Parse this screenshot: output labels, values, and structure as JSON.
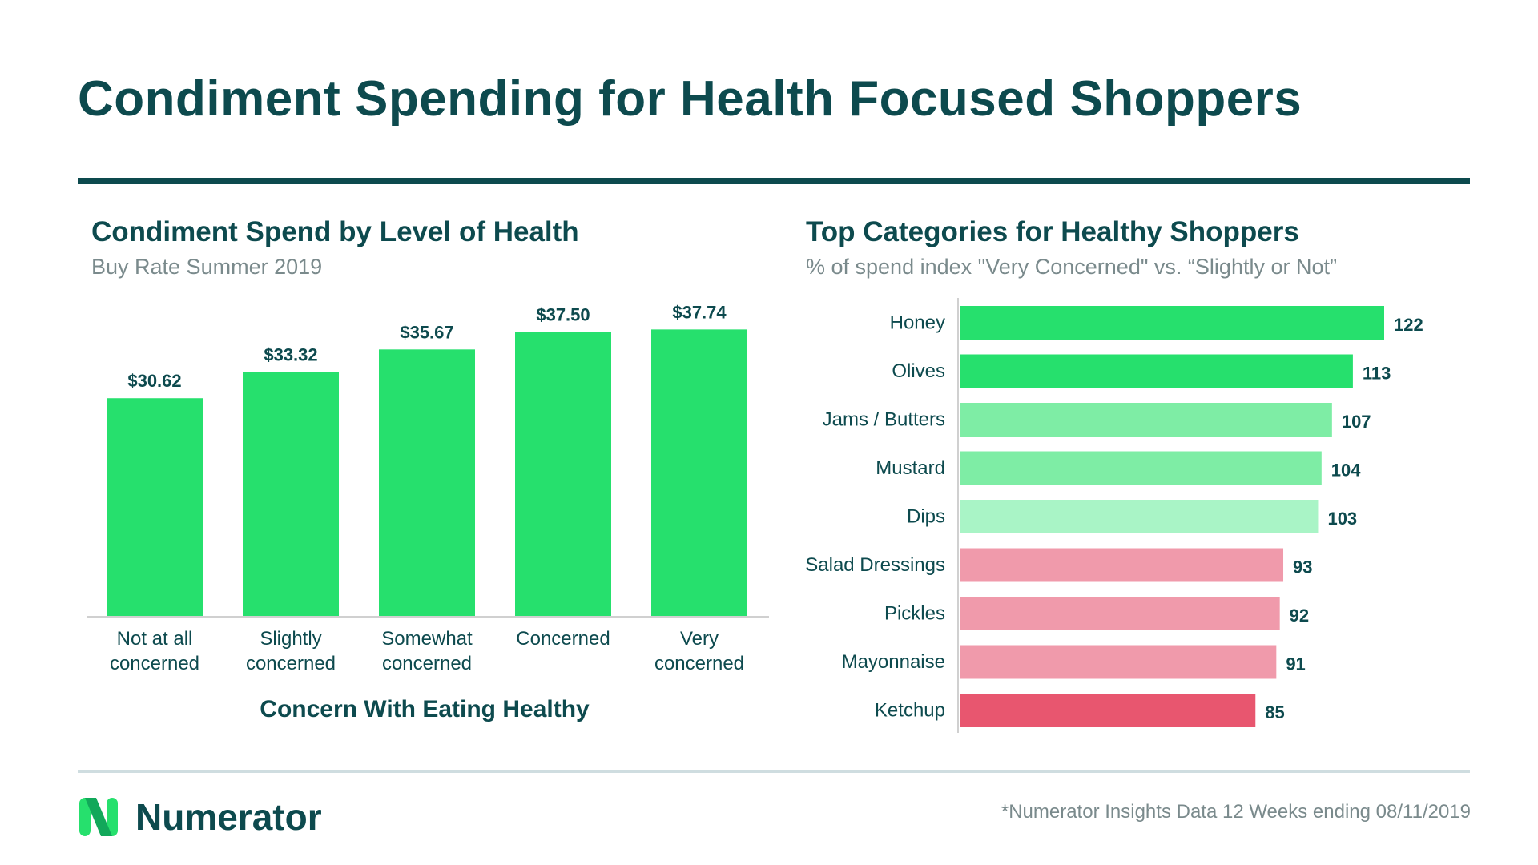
{
  "title": "Condiment Spending for Health Focused Shoppers",
  "left_panel": {
    "title": "Condiment Spend by Level of Health",
    "subtitle": "Buy Rate Summer 2019"
  },
  "right_panel": {
    "title": "Top Categories for Healthy Shoppers",
    "subtitle": "% of spend index \"Very Concerned\" vs. “Slightly or Not”"
  },
  "chart_data": [
    {
      "type": "bar",
      "title": "Condiment Spend by Level of Health",
      "subtitle": "Buy Rate Summer 2019",
      "xlabel": "Concern With Eating Healthy",
      "ylabel": "",
      "categories": [
        [
          "Not at all",
          "concerned"
        ],
        [
          "Slightly",
          "concerned"
        ],
        [
          "Somewhat",
          "concerned"
        ],
        [
          "Concerned"
        ],
        [
          "Very",
          "concerned"
        ]
      ],
      "values": [
        30.62,
        33.32,
        35.67,
        37.5,
        37.74
      ],
      "value_labels": [
        "$30.62",
        "$33.32",
        "$35.67",
        "$37.50",
        "$37.74"
      ],
      "ylim": [
        0,
        42
      ],
      "bar_color": "#26e06d",
      "axis_color": "#d0d0d0",
      "grid": false
    },
    {
      "type": "bar",
      "orientation": "horizontal",
      "title": "Top Categories for Healthy Shoppers",
      "subtitle": "% of spend index \"Very Concerned\" vs. “Slightly or Not”",
      "categories": [
        "Honey",
        "Olives",
        "Jams / Butters",
        "Mustard",
        "Dips",
        "Salad Dressings",
        "Pickles",
        "Mayonnaise",
        "Ketchup"
      ],
      "values": [
        122,
        113,
        107,
        104,
        103,
        93,
        92,
        91,
        85
      ],
      "colors": [
        "#26e06d",
        "#26e06d",
        "#7eeda5",
        "#7eeda5",
        "#a9f4c6",
        "#f09aab",
        "#f09aab",
        "#f09aab",
        "#e8566f"
      ],
      "xlim": [
        0,
        131
      ],
      "grid": false
    }
  ],
  "brand": {
    "name": "Numerator",
    "logo_colors": [
      "#26e06d",
      "#12a85a"
    ]
  },
  "footnote": "*Numerator Insights Data 12 Weeks ending 08/11/2019"
}
